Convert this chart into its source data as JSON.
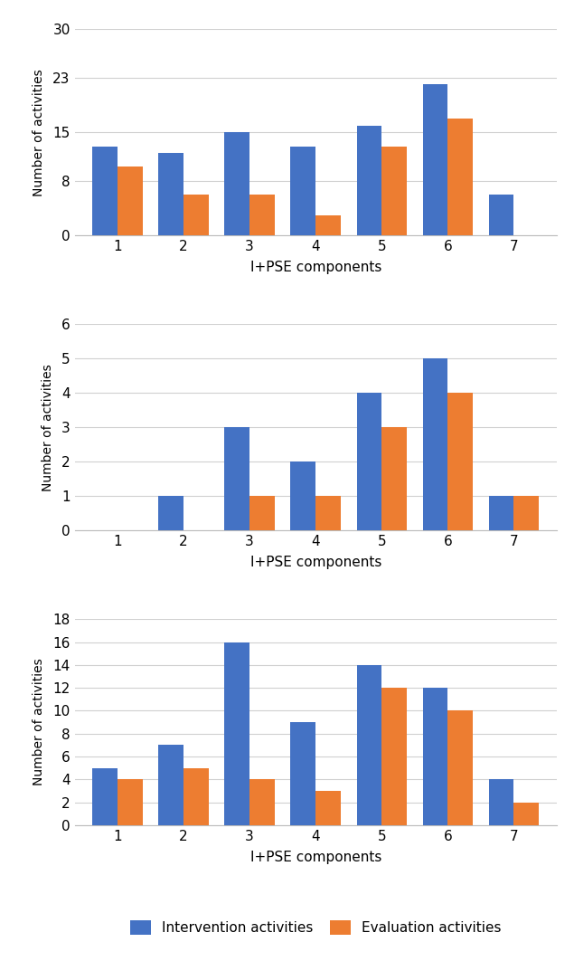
{
  "charts": [
    {
      "intervention": [
        13,
        12,
        15,
        13,
        16,
        22,
        6
      ],
      "evaluation": [
        10,
        6,
        6,
        3,
        13,
        17,
        0
      ],
      "ylim": [
        0,
        30
      ],
      "yticks": [
        0,
        8,
        15,
        23,
        30
      ]
    },
    {
      "intervention": [
        0,
        1,
        3,
        2,
        4,
        5,
        1
      ],
      "evaluation": [
        0,
        0,
        1,
        1,
        3,
        4,
        1
      ],
      "ylim": [
        0,
        6
      ],
      "yticks": [
        0,
        1,
        2,
        3,
        4,
        5,
        6
      ]
    },
    {
      "intervention": [
        5,
        7,
        16,
        9,
        14,
        12,
        4
      ],
      "evaluation": [
        4,
        5,
        4,
        3,
        12,
        10,
        2
      ],
      "ylim": [
        0,
        18
      ],
      "yticks": [
        0,
        2,
        4,
        6,
        8,
        10,
        12,
        14,
        16,
        18
      ]
    }
  ],
  "categories": [
    1,
    2,
    3,
    4,
    5,
    6,
    7
  ],
  "xlabel": "I+PSE components",
  "ylabel": "Number of activities",
  "bar_color_intervention": "#4472C4",
  "bar_color_evaluation": "#ED7D31",
  "legend_labels": [
    "Intervention activities",
    "Evaluation activities"
  ],
  "background_color": "#FFFFFF",
  "grid_color": "#D0D0D0"
}
